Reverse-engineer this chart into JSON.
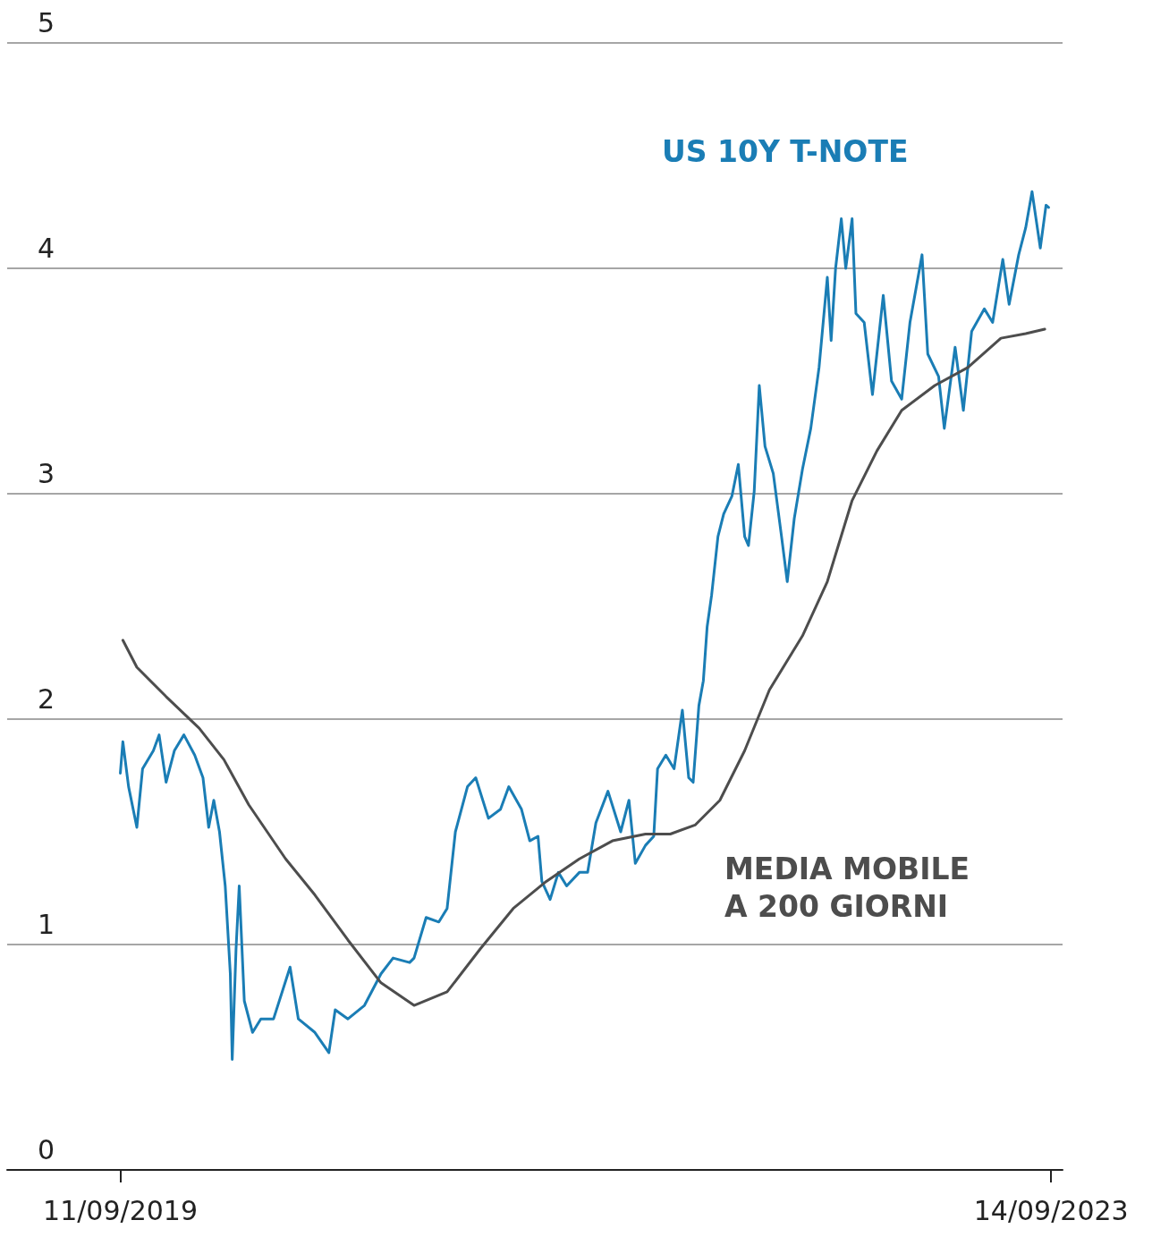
{
  "chart_data": {
    "type": "line",
    "xlim": [
      "2019-03-17",
      "2023-10-02"
    ],
    "xticks": [
      {
        "value": "2019-09-11",
        "label": "11/09/2019"
      },
      {
        "value": "2023-09-14",
        "label": "14/09/2023"
      }
    ],
    "ylim": [
      0,
      5
    ],
    "yticks": [
      0,
      1,
      2,
      3,
      4,
      5
    ],
    "grid": "y",
    "legend": false,
    "marker": "none",
    "line_style": "solid",
    "series": [
      {
        "name": "US 10Y T-NOTE",
        "color": "#1a7db5",
        "x": [
          "2019-09-11",
          "2019-09-15",
          "2019-09-24",
          "2019-10-07",
          "2019-10-16",
          "2019-11-02",
          "2019-11-11",
          "2019-11-22",
          "2019-12-05",
          "2019-12-20",
          "2020-01-06",
          "2020-01-19",
          "2020-01-28",
          "2020-02-05",
          "2020-02-14",
          "2020-02-23",
          "2020-03-02",
          "2020-03-05",
          "2020-03-11",
          "2020-03-16",
          "2020-03-24",
          "2020-04-06",
          "2020-04-19",
          "2020-05-09",
          "2020-06-04",
          "2020-06-17",
          "2020-07-13",
          "2020-08-04",
          "2020-08-14",
          "2020-09-03",
          "2020-09-29",
          "2020-10-25",
          "2020-11-13",
          "2020-12-09",
          "2020-12-16",
          "2021-01-04",
          "2021-01-24",
          "2021-02-06",
          "2021-02-19",
          "2021-03-10",
          "2021-03-23",
          "2021-04-12",
          "2021-05-01",
          "2021-05-14",
          "2021-06-03",
          "2021-06-16",
          "2021-06-29",
          "2021-07-05",
          "2021-07-18",
          "2021-07-31",
          "2021-08-13",
          "2021-09-02",
          "2021-09-15",
          "2021-09-28",
          "2021-10-17",
          "2021-11-06",
          "2021-11-19",
          "2021-11-29",
          "2021-12-15",
          "2021-12-28",
          "2022-01-03",
          "2022-01-16",
          "2022-01-29",
          "2022-02-11",
          "2022-02-21",
          "2022-02-28",
          "2022-03-09",
          "2022-03-16",
          "2022-03-22",
          "2022-03-29",
          "2022-04-08",
          "2022-04-17",
          "2022-04-30",
          "2022-05-10",
          "2022-05-20",
          "2022-05-26",
          "2022-06-04",
          "2022-06-12",
          "2022-06-21",
          "2022-07-04",
          "2022-07-17",
          "2022-07-26",
          "2022-08-06",
          "2022-08-19",
          "2022-09-01",
          "2022-09-14",
          "2022-09-27",
          "2022-10-03",
          "2022-10-10",
          "2022-10-19",
          "2022-10-26",
          "2022-11-05",
          "2022-11-11",
          "2022-11-24",
          "2022-12-07",
          "2022-12-24",
          "2023-01-06",
          "2023-01-22",
          "2023-02-04",
          "2023-02-23",
          "2023-03-04",
          "2023-03-21",
          "2023-03-30",
          "2023-04-16",
          "2023-04-29",
          "2023-05-12",
          "2023-06-01",
          "2023-06-14",
          "2023-06-30",
          "2023-07-10",
          "2023-07-25",
          "2023-08-05",
          "2023-08-15",
          "2023-08-28",
          "2023-09-06",
          "2023-09-10"
        ],
        "values": [
          1.76,
          1.9,
          1.7,
          1.52,
          1.78,
          1.86,
          1.93,
          1.72,
          1.86,
          1.93,
          1.84,
          1.74,
          1.52,
          1.64,
          1.5,
          1.26,
          0.87,
          0.49,
          0.98,
          1.26,
          0.75,
          0.61,
          0.67,
          0.67,
          0.9,
          0.67,
          0.61,
          0.52,
          0.71,
          0.67,
          0.73,
          0.87,
          0.94,
          0.92,
          0.94,
          1.12,
          1.1,
          1.16,
          1.5,
          1.7,
          1.74,
          1.56,
          1.6,
          1.7,
          1.6,
          1.46,
          1.48,
          1.28,
          1.2,
          1.32,
          1.26,
          1.32,
          1.32,
          1.54,
          1.68,
          1.5,
          1.64,
          1.36,
          1.44,
          1.48,
          1.78,
          1.84,
          1.78,
          2.04,
          1.74,
          1.72,
          2.06,
          2.17,
          2.41,
          2.55,
          2.81,
          2.91,
          2.99,
          3.13,
          2.81,
          2.77,
          3.01,
          3.48,
          3.21,
          3.09,
          2.81,
          2.61,
          2.89,
          3.11,
          3.29,
          3.56,
          3.96,
          3.68,
          4.0,
          4.22,
          4.0,
          4.22,
          3.8,
          3.76,
          3.44,
          3.88,
          3.5,
          3.42,
          3.76,
          4.06,
          3.62,
          3.52,
          3.29,
          3.65,
          3.37,
          3.72,
          3.82,
          3.76,
          4.04,
          3.84,
          4.06,
          4.18,
          4.34,
          4.09,
          4.28,
          4.27
        ]
      },
      {
        "name": "MEDIA MOBILE A 200 GIORNI",
        "color": "#4d4d4d",
        "x": [
          "2019-09-15",
          "2019-10-07",
          "2019-11-22",
          "2020-01-13",
          "2020-02-21",
          "2020-03-31",
          "2020-05-28",
          "2020-07-13",
          "2020-09-03",
          "2020-10-25",
          "2020-12-16",
          "2021-02-06",
          "2021-03-30",
          "2021-05-21",
          "2021-07-12",
          "2021-09-02",
          "2021-10-24",
          "2021-12-15",
          "2022-01-23",
          "2022-03-03",
          "2022-04-11",
          "2022-05-20",
          "2022-06-28",
          "2022-08-19",
          "2022-09-27",
          "2022-11-05",
          "2022-12-14",
          "2023-01-22",
          "2023-03-15",
          "2023-05-06",
          "2023-06-27",
          "2023-08-05",
          "2023-09-04"
        ],
        "values": [
          2.35,
          2.23,
          2.1,
          1.96,
          1.82,
          1.62,
          1.38,
          1.22,
          1.02,
          0.83,
          0.73,
          0.79,
          0.98,
          1.16,
          1.28,
          1.38,
          1.46,
          1.49,
          1.49,
          1.53,
          1.64,
          1.86,
          2.13,
          2.37,
          2.61,
          2.97,
          3.19,
          3.37,
          3.48,
          3.56,
          3.69,
          3.71,
          3.73
        ]
      }
    ]
  }
}
